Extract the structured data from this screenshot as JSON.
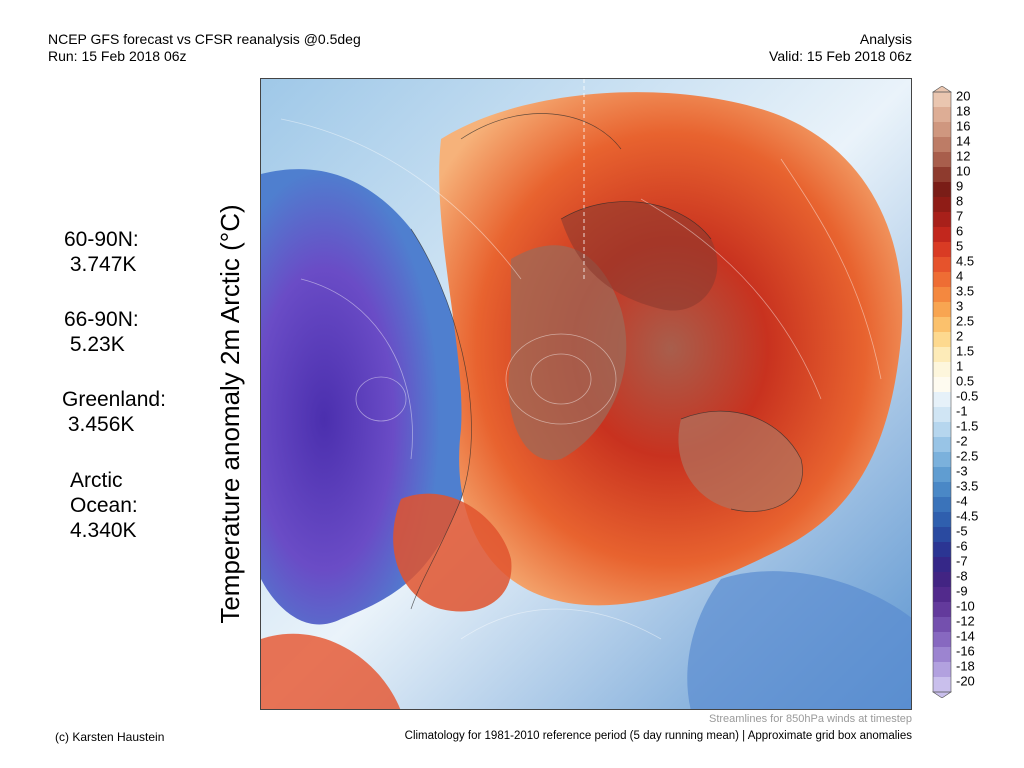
{
  "header": {
    "left_line1": "NCEP GFS forecast vs CFSR reanalysis @0.5deg",
    "left_line2": "Run: 15 Feb 2018 06z",
    "right_line1": "Analysis",
    "right_line2": "Valid: 15 Feb 2018 06z"
  },
  "stats": [
    {
      "lines": [
        "60-90N:",
        " 3.747K"
      ]
    },
    {
      "lines": [
        "66-90N:",
        " 5.23K"
      ]
    },
    {
      "lines": [
        "Greenland:",
        " 3.456K"
      ]
    },
    {
      "lines": [
        "Arctic",
        "Ocean:",
        "4.340K"
      ]
    }
  ],
  "vertical_label": "Temperature anomaly 2m Arctic (°C)",
  "colorbar": {
    "labels": [
      "20",
      "18",
      "16",
      "14",
      "12",
      "10",
      "9",
      "8",
      "7",
      "6",
      "5",
      "4.5",
      "4",
      "3.5",
      "3",
      "2.5",
      "2",
      "1.5",
      "1",
      "0.5",
      "-0.5",
      "-1",
      "-1.5",
      "-2",
      "-2.5",
      "-3",
      "-3.5",
      "-4",
      "-4.5",
      "-5",
      "-6",
      "-7",
      "-8",
      "-9",
      "-10",
      "-12",
      "-14",
      "-16",
      "-18",
      "-20"
    ],
    "colors": [
      "#eac6b0",
      "#ddad95",
      "#cf977f",
      "#bd7c66",
      "#a85e4c",
      "#8e3b2e",
      "#7a1d17",
      "#8f1c16",
      "#a8201a",
      "#c2271d",
      "#d93b24",
      "#e6532c",
      "#ee6d34",
      "#f4883f",
      "#f8a551",
      "#fbc16c",
      "#fdd98f",
      "#fdebb8",
      "#fdf6dc",
      "#fefbf0",
      "#e6f1f9",
      "#d0e5f4",
      "#b6d6ee",
      "#98c4e6",
      "#7bb1dc",
      "#609dd1",
      "#4a88c6",
      "#3a73ba",
      "#2f5fae",
      "#2a4aa0",
      "#2b3593",
      "#352788",
      "#422483",
      "#522a8c",
      "#633a9c",
      "#7450ae",
      "#8768c0",
      "#9c84d0",
      "#b2a1df",
      "#c9bfec"
    ]
  },
  "map": {
    "land_color": "#8c5a4c",
    "warm_color": "#e0532e",
    "cold_color": "#5540b8"
  },
  "footer": {
    "streamlines_note": "Streamlines for 850hPa winds at timestep",
    "credit": "(c) Karsten Haustein",
    "climatology_note": "Climatology for 1981-2010 reference period (5 day running mean) | Approximate grid box anomalies"
  }
}
